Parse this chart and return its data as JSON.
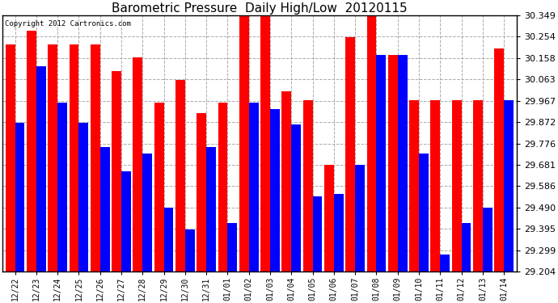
{
  "title": "Barometric Pressure  Daily High/Low  20120115",
  "copyright": "Copyright 2012 Cartronics.com",
  "dates": [
    "12/22",
    "12/23",
    "12/24",
    "12/25",
    "12/26",
    "12/27",
    "12/28",
    "12/29",
    "12/30",
    "12/31",
    "01/01",
    "01/02",
    "01/03",
    "01/04",
    "01/05",
    "01/06",
    "01/07",
    "01/08",
    "01/09",
    "01/10",
    "01/11",
    "01/12",
    "01/13",
    "01/14"
  ],
  "highs": [
    30.22,
    30.28,
    30.22,
    30.22,
    30.22,
    30.1,
    30.16,
    29.96,
    30.06,
    29.91,
    29.96,
    30.38,
    30.38,
    30.01,
    29.97,
    29.68,
    30.25,
    30.35,
    30.17,
    29.97,
    29.97,
    29.97,
    29.97,
    30.2
  ],
  "lows": [
    29.87,
    30.12,
    29.96,
    29.87,
    29.76,
    29.65,
    29.73,
    29.49,
    29.39,
    29.76,
    29.42,
    29.96,
    29.93,
    29.86,
    29.54,
    29.55,
    29.68,
    30.17,
    30.17,
    29.73,
    29.28,
    29.42,
    29.49,
    29.97
  ],
  "bar_high_color": "#ff0000",
  "bar_low_color": "#0000ff",
  "background_color": "#ffffff",
  "grid_color": "#aaaaaa",
  "title_fontsize": 11,
  "ylim_min": 29.204,
  "ylim_max": 30.349,
  "yticks": [
    29.204,
    29.299,
    29.395,
    29.49,
    29.586,
    29.681,
    29.776,
    29.872,
    29.967,
    30.063,
    30.158,
    30.254,
    30.349
  ]
}
